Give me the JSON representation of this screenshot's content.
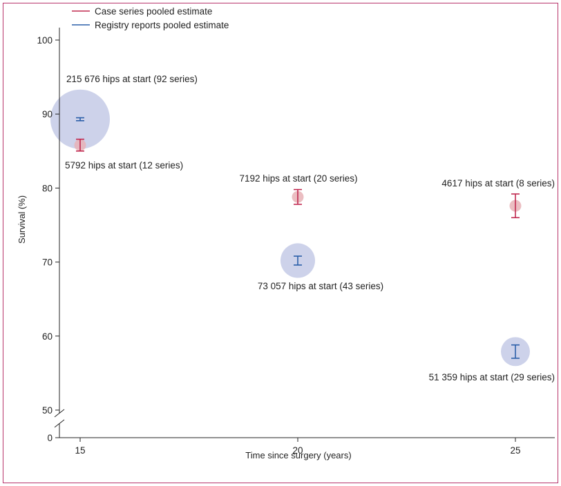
{
  "chart_data": {
    "type": "scatter",
    "title": "",
    "xlabel": "Time since surgery (years)",
    "ylabel": "Survival (%)",
    "x_ticks": [
      15,
      20,
      25
    ],
    "y_ticks": [
      0,
      50,
      60,
      70,
      80,
      90,
      100
    ],
    "xlim": [
      14.5,
      25.8
    ],
    "ylim": [
      0,
      100
    ],
    "y_axis_break": "between 0 and 50",
    "grid": false,
    "legend_position": "top-left",
    "series": [
      {
        "name": "Case series pooled estimate",
        "color": "#c0284f",
        "marker_fill": "#e7b3b7",
        "points": [
          {
            "x": 15,
            "y": 85.8,
            "ci_low": 85.0,
            "ci_high": 86.6,
            "hips": 5792,
            "n_series": 12,
            "label": "5792 hips at start (12 series)"
          },
          {
            "x": 20,
            "y": 78.8,
            "ci_low": 77.8,
            "ci_high": 79.8,
            "hips": 7192,
            "n_series": 20,
            "label": "7192 hips at start (20 series)"
          },
          {
            "x": 25,
            "y": 77.6,
            "ci_low": 76.0,
            "ci_high": 79.2,
            "hips": 4617,
            "n_series": 8,
            "label": "4617 hips at start (8 series)"
          }
        ]
      },
      {
        "name": "Registry reports pooled estimate",
        "color": "#2a5ea8",
        "marker_fill": "#c8cde8",
        "points": [
          {
            "x": 15,
            "y": 89.3,
            "ci_low": 89.1,
            "ci_high": 89.5,
            "hips": 215676,
            "n_series": 92,
            "label": "215 676 hips at start (92 series)"
          },
          {
            "x": 20,
            "y": 70.2,
            "ci_low": 69.6,
            "ci_high": 70.8,
            "hips": 73057,
            "n_series": 43,
            "label": "73 057 hips at start (43 series)"
          },
          {
            "x": 25,
            "y": 57.9,
            "ci_low": 57.0,
            "ci_high": 58.8,
            "hips": 51359,
            "n_series": 29,
            "label": "51 359 hips at start (29 series)"
          }
        ]
      }
    ]
  }
}
